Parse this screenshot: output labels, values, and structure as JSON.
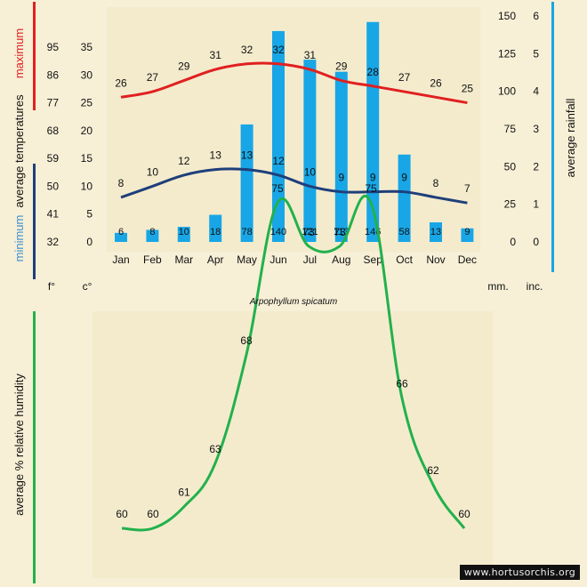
{
  "colors": {
    "background": "#f7efd6",
    "max_line": "#e02020",
    "min_line": "#1f3f7a",
    "rain_bar": "#18a6e6",
    "humidity_line": "#22b14c",
    "text": "#111111"
  },
  "species": "Arpophyllum spicatum",
  "watermark": "www.hortusorchis.org",
  "chart_data": [
    {
      "type": "bar+line",
      "title": "Arpophyllum spicatum",
      "categories": [
        "Jan",
        "Feb",
        "Mar",
        "Apr",
        "May",
        "Jun",
        "Jul",
        "Aug",
        "Sep",
        "Oct",
        "Nov",
        "Dec"
      ],
      "series": [
        {
          "name": "average maximum temperatures",
          "unit": "°C",
          "type": "line",
          "values": [
            26,
            27,
            29,
            31,
            32,
            32,
            31,
            29,
            28,
            27,
            26,
            25
          ]
        },
        {
          "name": "average minimum temperatures",
          "unit": "°C",
          "type": "line",
          "values": [
            8,
            10,
            12,
            13,
            13,
            12,
            10,
            9,
            9,
            9,
            8,
            7
          ]
        },
        {
          "name": "average rainfall",
          "unit": "mm",
          "type": "bar",
          "values": [
            6,
            8,
            10,
            18,
            78,
            140,
            121,
            113,
            146,
            58,
            13,
            9
          ]
        }
      ],
      "left_axis_celsius": {
        "ticks": [
          "35",
          "30",
          "25",
          "20",
          "15",
          "10",
          "5",
          "0"
        ],
        "ylim": [
          0,
          35
        ],
        "unit_label": "c°"
      },
      "left_axis_fahrenheit": {
        "ticks": [
          "95",
          "86",
          "77",
          "68",
          "59",
          "50",
          "41",
          "32"
        ],
        "unit_label": "f°"
      },
      "right_axis_mm": {
        "ticks": [
          "150",
          "125",
          "100",
          "75",
          "50",
          "25",
          "0"
        ],
        "ylim": [
          0,
          150
        ],
        "unit_label": "mm."
      },
      "right_axis_inches": {
        "ticks": [
          "6",
          "5",
          "4",
          "3",
          "2",
          "1",
          "0"
        ],
        "unit_label": "inc."
      },
      "labels": {
        "maximum": "maximum",
        "average_temperatures": "average temperatures",
        "minimum": "minimum",
        "average_rainfall": "average rainfall"
      }
    },
    {
      "type": "line",
      "title": "average % relative humidity",
      "categories": [
        "Jan",
        "Feb",
        "Mar",
        "Apr",
        "May",
        "Jun",
        "Jul",
        "Aug",
        "Sep",
        "Oct",
        "Nov",
        "Dec"
      ],
      "series": [
        {
          "name": "average % relative humidity",
          "values": [
            60,
            60,
            61,
            63,
            68,
            75,
            73,
            73,
            75,
            66,
            62,
            60
          ]
        }
      ],
      "ylabel": "average %  relative humidity"
    }
  ]
}
